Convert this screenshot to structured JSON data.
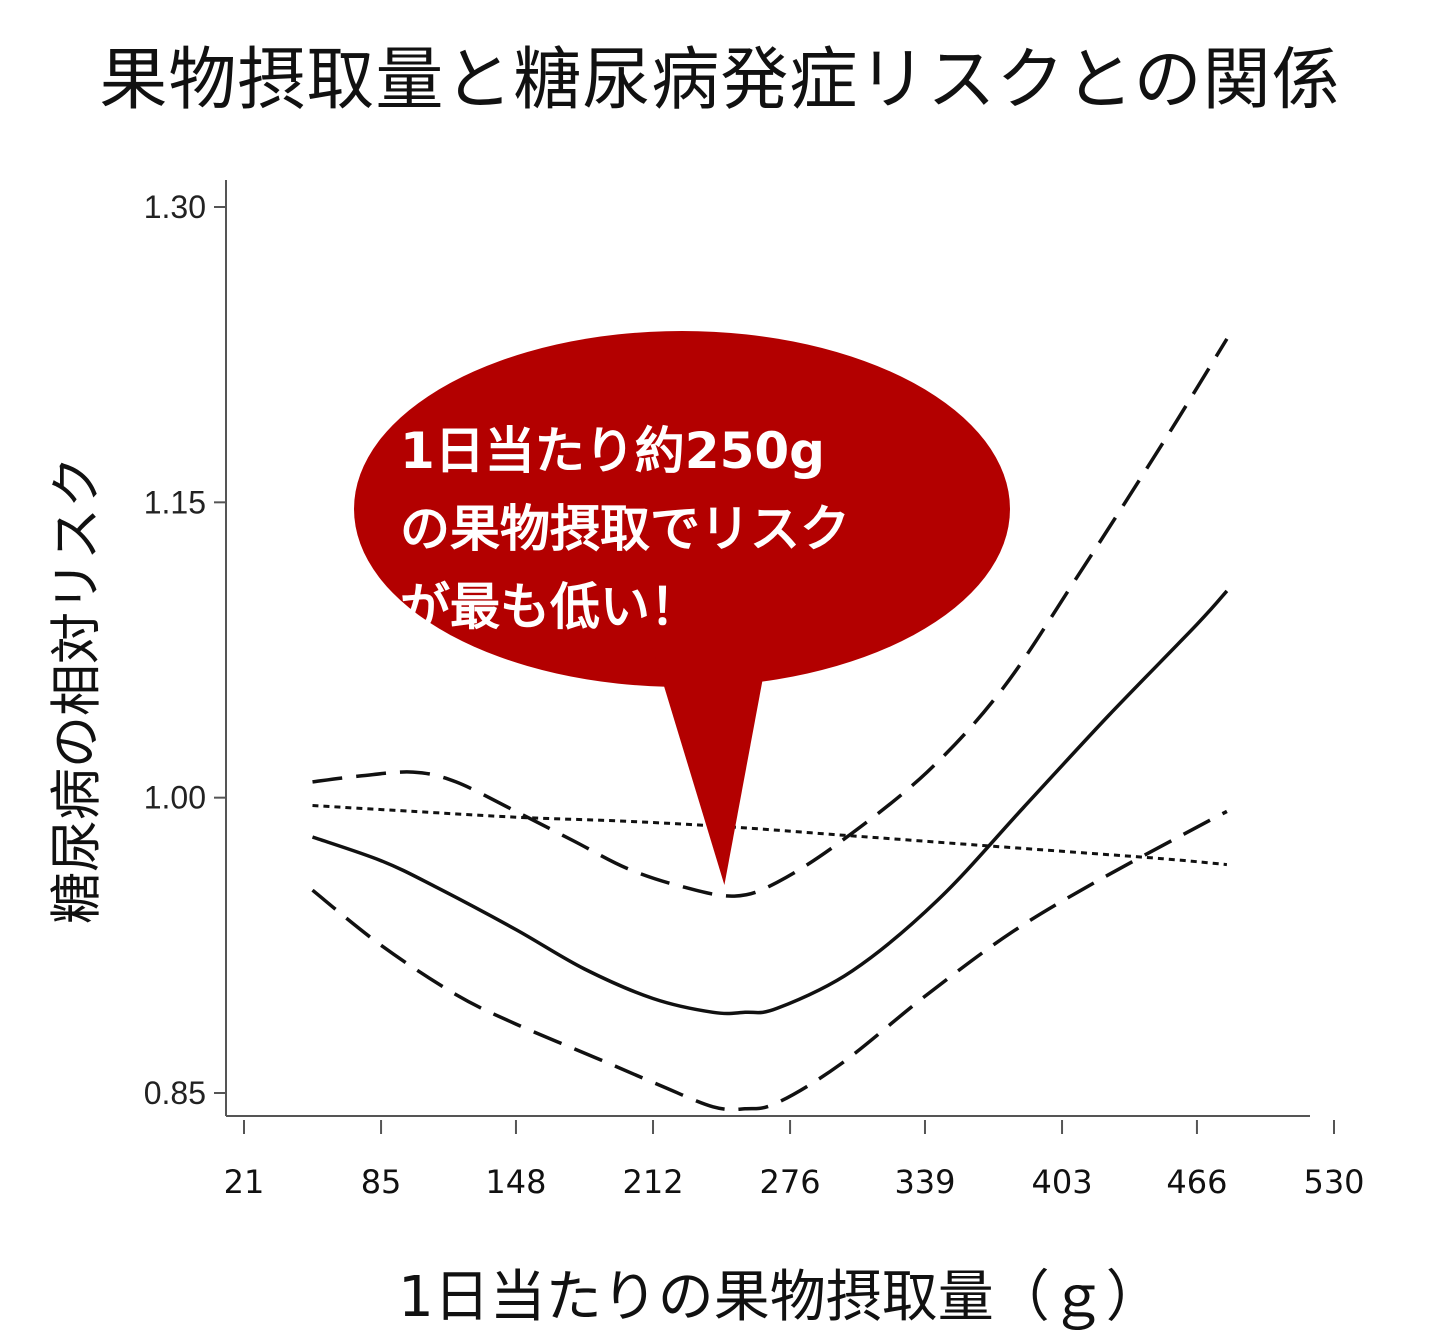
{
  "chart_data": {
    "type": "line",
    "title": "果物摂取量と糖尿病発症リスクとの関係",
    "xlabel": "1日当たりの果物摂取量（ｇ）",
    "ylabel": "糖尿病の相対リスク",
    "xlim": [
      21,
      530
    ],
    "ylim": [
      0.85,
      1.3
    ],
    "x_ticks": [
      21,
      85,
      148,
      212,
      276,
      339,
      403,
      466,
      530
    ],
    "y_ticks": [
      "1.30",
      "1.15",
      "1.00",
      "0.85"
    ],
    "y_tick_values": [
      1.3,
      1.15,
      1.0,
      0.85
    ],
    "grid": false,
    "series": [
      {
        "style": "solid",
        "x": [
          53,
          85,
          110,
          148,
          180,
          212,
          240,
          255,
          270,
          305,
          345,
          385,
          425,
          466,
          480
        ],
        "y": [
          0.98,
          0.968,
          0.955,
          0.933,
          0.913,
          0.898,
          0.891,
          0.891,
          0.893,
          0.912,
          0.948,
          0.995,
          1.042,
          1.088,
          1.105
        ]
      },
      {
        "style": "long-dash",
        "x": [
          53,
          75,
          100,
          120,
          148,
          175,
          200,
          225,
          250,
          270,
          300,
          340,
          375,
          410,
          450,
          480
        ],
        "y": [
          1.008,
          1.011,
          1.013,
          1.008,
          0.993,
          0.978,
          0.964,
          0.955,
          0.95,
          0.957,
          0.978,
          1.013,
          1.055,
          1.112,
          1.18,
          1.233
        ]
      },
      {
        "style": "long-dash",
        "x": [
          53,
          85,
          120,
          148,
          185,
          215,
          240,
          255,
          270,
          300,
          340,
          380,
          420,
          466,
          480
        ],
        "y": [
          0.953,
          0.925,
          0.9,
          0.885,
          0.868,
          0.854,
          0.843,
          0.842,
          0.845,
          0.865,
          0.9,
          0.932,
          0.958,
          0.985,
          0.993
        ]
      },
      {
        "style": "dotted",
        "x": [
          53,
          100,
          150,
          200,
          250,
          300,
          350,
          400,
          450,
          480
        ],
        "y": [
          0.996,
          0.993,
          0.99,
          0.988,
          0.985,
          0.981,
          0.977,
          0.973,
          0.969,
          0.966
        ]
      }
    ],
    "annotation": {
      "lines": [
        "1日当たり約250g",
        "の果物摂取でリスク",
        "が最も低い！"
      ],
      "pointer_x": 250,
      "color": "#b30000"
    }
  }
}
